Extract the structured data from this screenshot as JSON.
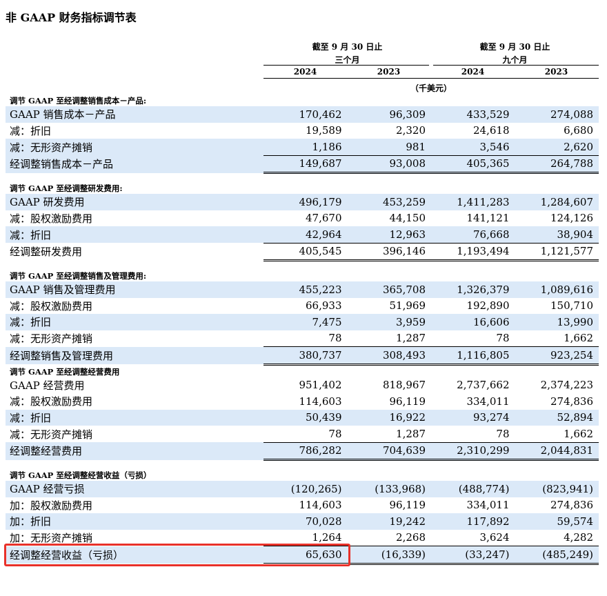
{
  "title": "非 GAAP 财务指标调节表",
  "header": {
    "group1": {
      "line1": "截至 9 月 30 日止",
      "line2": "三个月",
      "years": [
        "2024",
        "2023"
      ]
    },
    "group2": {
      "line1": "截至 9 月 30 日止",
      "line2": "九个月",
      "years": [
        "2024",
        "2023"
      ]
    },
    "unit": "（千美元）"
  },
  "sections": [
    {
      "heading": "调节 GAAP 至经调整销售成本－产品:",
      "rows": [
        {
          "label": "GAAP 销售成本－产品",
          "values": [
            "170,462",
            "96,309",
            "433,529",
            "274,088"
          ]
        },
        {
          "label": "减：折旧",
          "values": [
            "19,589",
            "2,320",
            "24,618",
            "6,680"
          ]
        },
        {
          "label": "减：无形资产摊销",
          "values": [
            "1,186",
            "981",
            "3,546",
            "2,620"
          ]
        },
        {
          "label": "经调整销售成本－产品",
          "values": [
            "149,687",
            "93,008",
            "405,365",
            "264,788"
          ]
        }
      ]
    },
    {
      "heading": "调节 GAAP 至经调整研发费用:",
      "rows": [
        {
          "label": "GAAP 研发费用",
          "values": [
            "496,179",
            "453,259",
            "1,411,283",
            "1,284,607"
          ]
        },
        {
          "label": "减：股权激励费用",
          "values": [
            "47,670",
            "44,150",
            "141,121",
            "124,126"
          ]
        },
        {
          "label": "减：折旧",
          "values": [
            "42,964",
            "12,963",
            "76,668",
            "38,904"
          ]
        },
        {
          "label": "经调整研发费用",
          "values": [
            "405,545",
            "396,146",
            "1,193,494",
            "1,121,577"
          ]
        }
      ]
    },
    {
      "heading": "调节 GAAP 至经调整销售及管理费用:",
      "rows": [
        {
          "label": "GAAP 销售及管理费用",
          "values": [
            "455,223",
            "365,708",
            "1,326,379",
            "1,089,616"
          ]
        },
        {
          "label": "减：股权激励费用",
          "values": [
            "66,933",
            "51,969",
            "192,890",
            "150,710"
          ]
        },
        {
          "label": "减：折旧",
          "values": [
            "7,475",
            "3,959",
            "16,606",
            "13,990"
          ]
        },
        {
          "label": "减：无形资产摊销",
          "values": [
            "78",
            "1,287",
            "78",
            "1,662"
          ]
        },
        {
          "label": "经调整销售及管理费用",
          "values": [
            "380,737",
            "308,493",
            "1,116,805",
            "923,254"
          ]
        }
      ]
    },
    {
      "heading": "调节 GAAP 至经调整经营费用",
      "rows": [
        {
          "label": "GAAP 经营费用",
          "values": [
            "951,402",
            "818,967",
            "2,737,662",
            "2,374,223"
          ]
        },
        {
          "label": "减：股权激励费用",
          "values": [
            "114,603",
            "96,119",
            "334,011",
            "274,836"
          ]
        },
        {
          "label": "减：折旧",
          "values": [
            "50,439",
            "16,922",
            "93,274",
            "52,894"
          ]
        },
        {
          "label": "减：无形资产摊销",
          "values": [
            "78",
            "1,287",
            "78",
            "1,662"
          ]
        },
        {
          "label": "经调整经营费用",
          "values": [
            "786,282",
            "704,639",
            "2,310,299",
            "2,044,831"
          ]
        }
      ]
    },
    {
      "heading": "调节 GAAP 至经调整经营收益（亏损）",
      "rows": [
        {
          "label": "GAAP 经营亏损",
          "values": [
            "(120,265)",
            "(133,968)",
            "(488,774)",
            "(823,941)"
          ]
        },
        {
          "label": "加：股权激励费用",
          "values": [
            "114,603",
            "96,119",
            "334,011",
            "274,836"
          ]
        },
        {
          "label": "加：折旧",
          "values": [
            "70,028",
            "19,242",
            "117,892",
            "59,574"
          ]
        },
        {
          "label": "加：无形资产摊销",
          "values": [
            "1,264",
            "2,268",
            "3,624",
            "4,282"
          ]
        },
        {
          "label": "经调整经营收益（亏损）",
          "values": [
            "65,630",
            "(16,339)",
            "(33,247)",
            "(485,249)"
          ]
        }
      ]
    }
  ],
  "colors": {
    "highlight_row": "#dbe9f8",
    "callout_border": "#e8312a"
  }
}
